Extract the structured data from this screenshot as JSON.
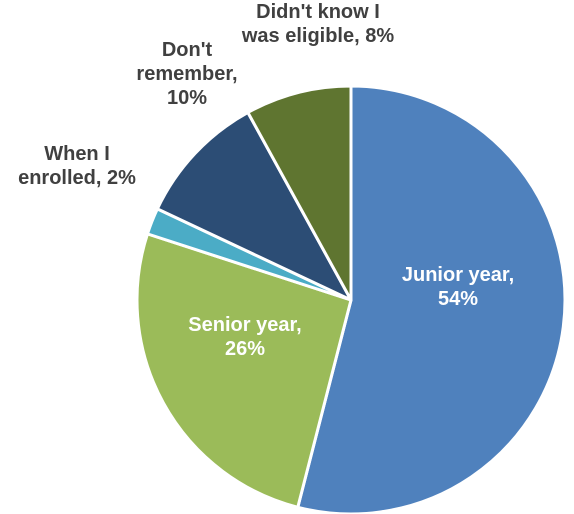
{
  "chart_data": {
    "type": "pie",
    "title": "",
    "start_angle_deg": 0,
    "direction": "clockwise",
    "slices": [
      {
        "label_lines": [
          "Junior year,",
          "54%"
        ],
        "value": 54,
        "color": "#4f81bd",
        "label_color": "#ffffff",
        "label_inside": true
      },
      {
        "label_lines": [
          "Senior year,",
          "26%"
        ],
        "value": 26,
        "color": "#9bbb59",
        "label_color": "#ffffff",
        "label_inside": true
      },
      {
        "label_lines": [
          "When I",
          "enrolled, 2%"
        ],
        "value": 2,
        "color": "#4bacc6",
        "label_color": "#404040",
        "label_inside": false
      },
      {
        "label_lines": [
          "Don't",
          "remember,",
          "10%"
        ],
        "value": 10,
        "color": "#2c4d75",
        "label_color": "#404040",
        "label_inside": false
      },
      {
        "label_lines": [
          "Didn't know I",
          "was eligible, 8%"
        ],
        "value": 8,
        "color": "#5f7530",
        "label_color": "#404040",
        "label_inside": false
      }
    ]
  }
}
